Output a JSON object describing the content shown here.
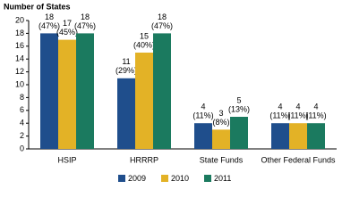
{
  "chart_data": {
    "type": "bar",
    "y_axis_title": "Number of States",
    "categories": [
      "HSIP",
      "HRRRP",
      "State Funds",
      "Other Federal Funds"
    ],
    "series": [
      {
        "name": "2009",
        "color": "#1f4e8c",
        "values": [
          18,
          11,
          4,
          4
        ],
        "share_labels": [
          "(47%)",
          "(29%)",
          "(11%)",
          "(11%)"
        ]
      },
      {
        "name": "2010",
        "color": "#e3b226",
        "values": [
          17,
          15,
          3,
          4
        ],
        "share_labels": [
          "(45%)",
          "(40%)",
          "(8%)",
          "(11%)"
        ]
      },
      {
        "name": "2011",
        "color": "#1b7a5f",
        "values": [
          18,
          18,
          5,
          4
        ],
        "share_labels": [
          "(47%)",
          "(47%)",
          "(13%)",
          "(11%)"
        ]
      }
    ],
    "ylim": [
      0,
      20
    ],
    "yticks": [
      0,
      2,
      4,
      6,
      8,
      10,
      12,
      14,
      16,
      18,
      20
    ],
    "grid": false,
    "legend": "bottom"
  }
}
